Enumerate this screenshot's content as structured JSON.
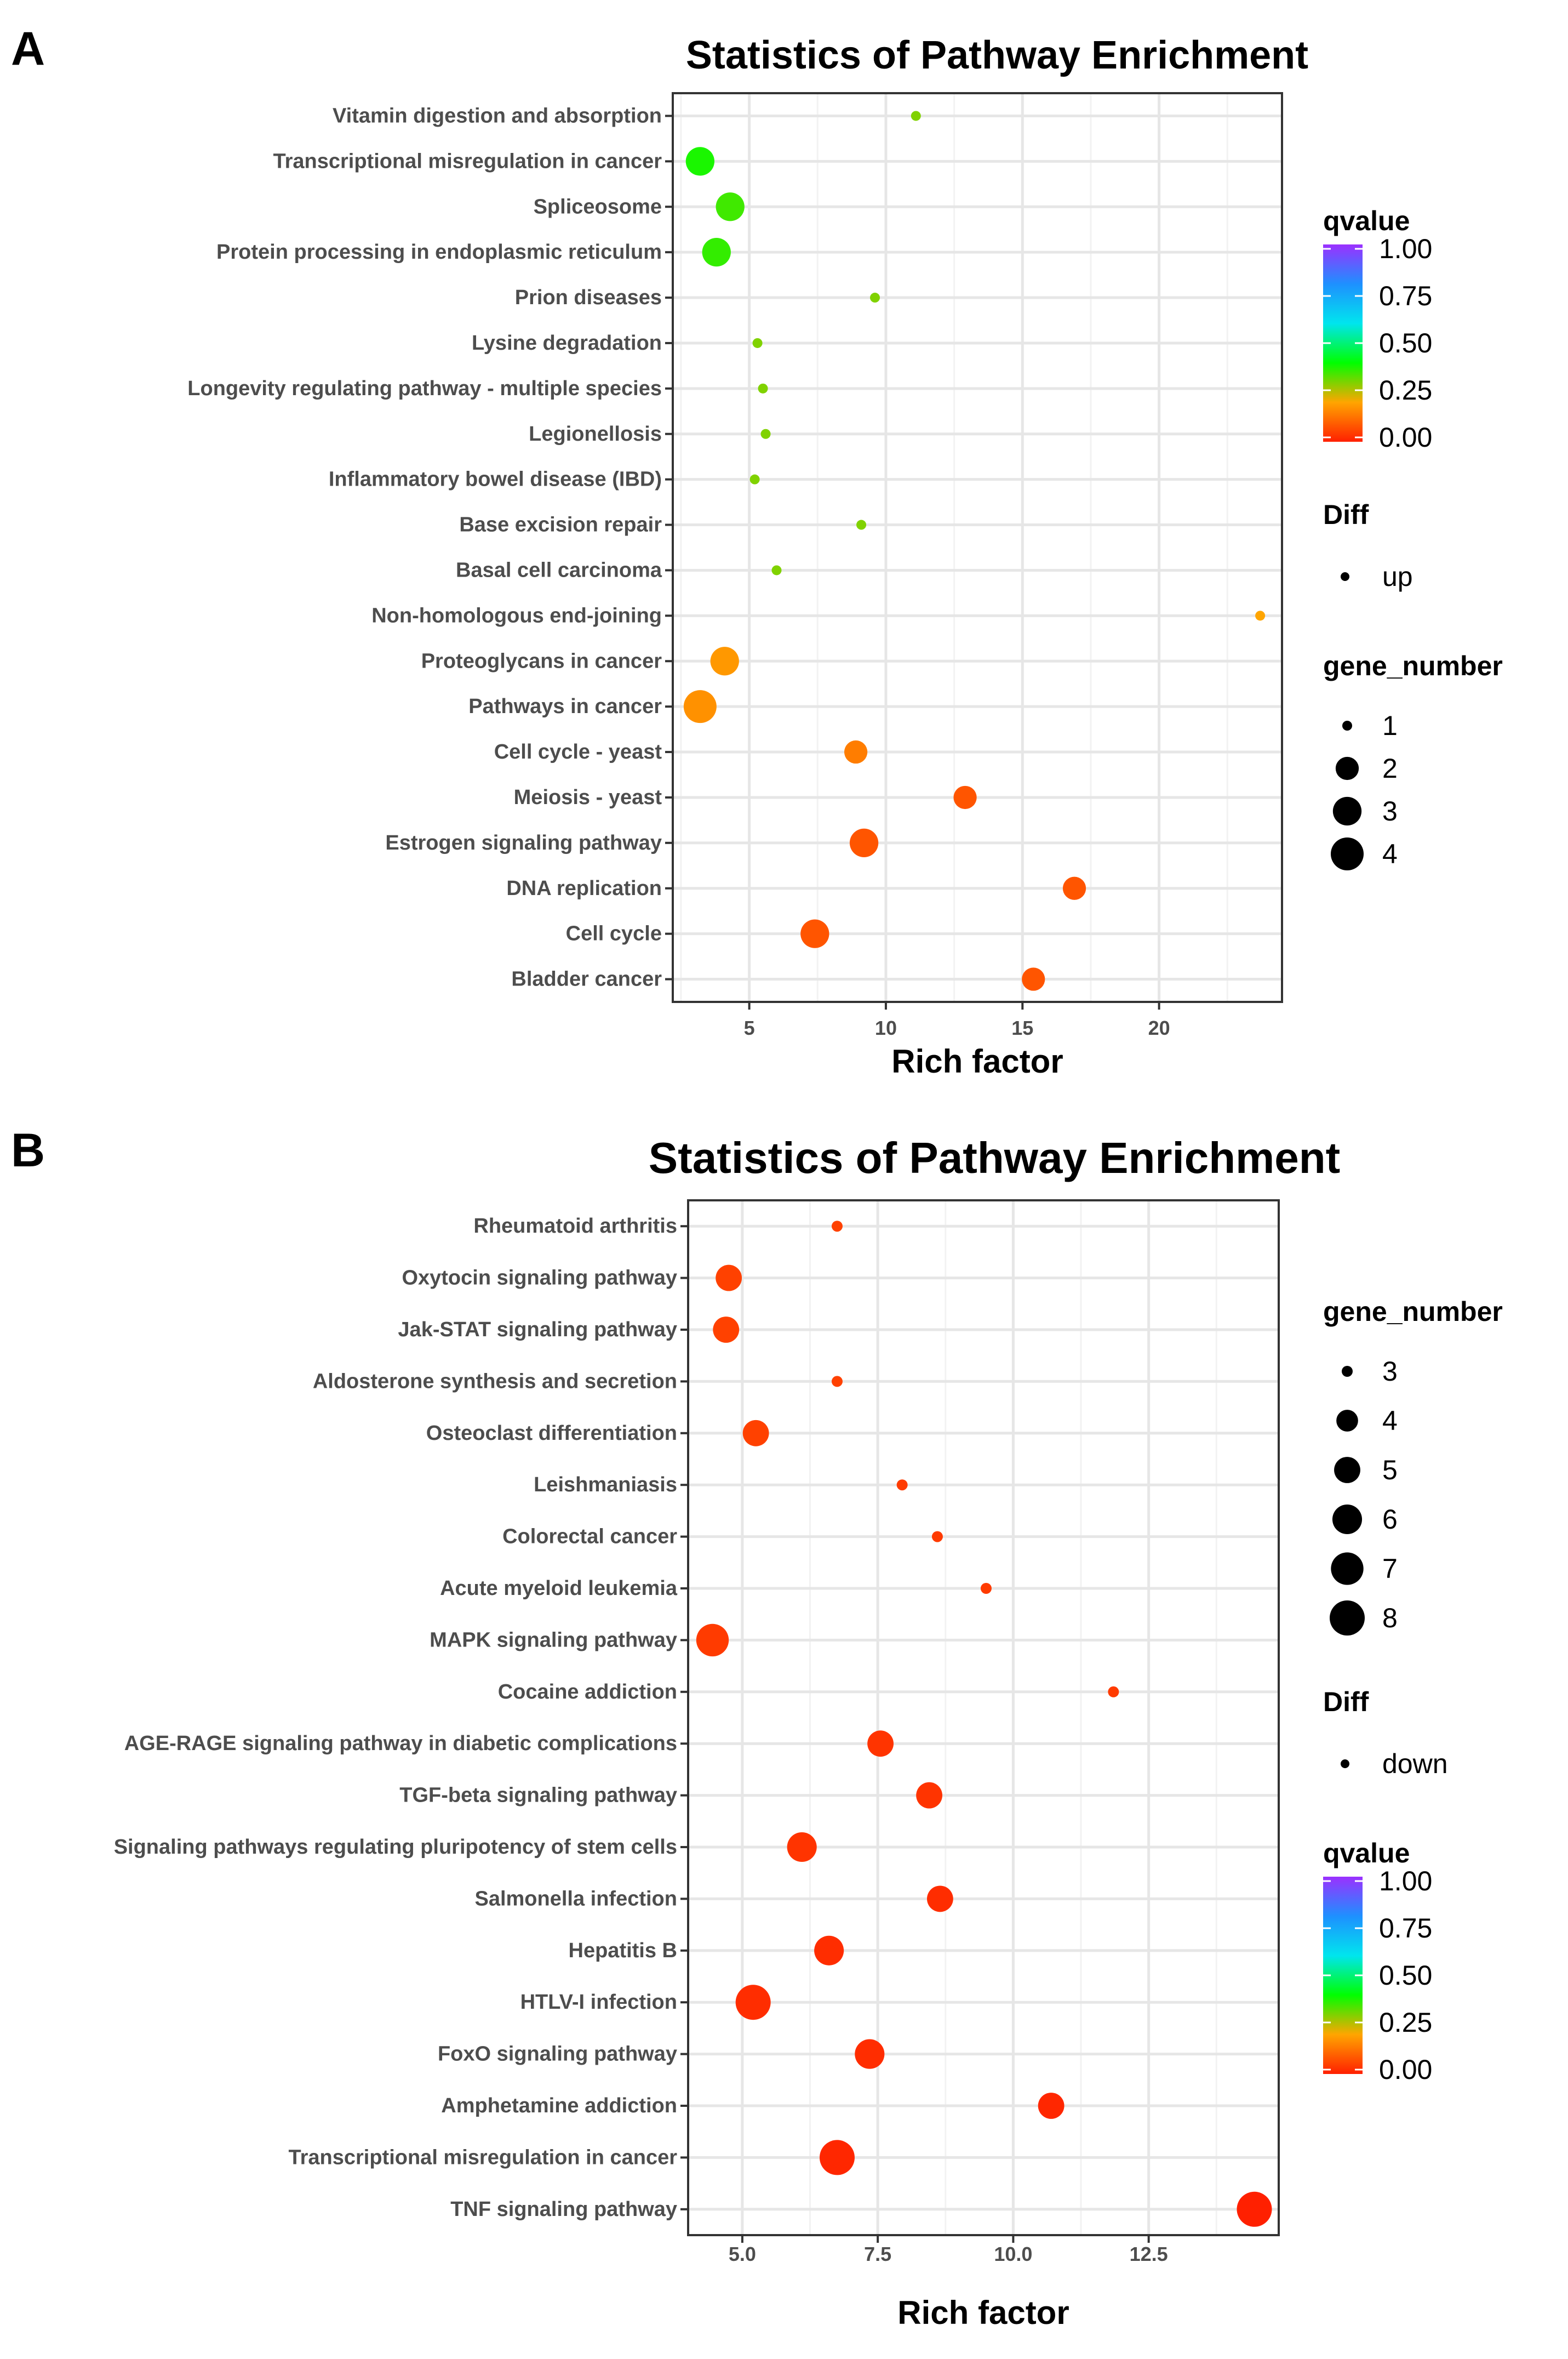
{
  "figure": {
    "panel_a_letter": "A",
    "panel_b_letter": "B"
  },
  "chart_data": [
    {
      "type": "scatter",
      "title": "Statistics of Pathway Enrichment",
      "xlabel": "Rich factor",
      "xlim": [
        2.2,
        24.5
      ],
      "xticks": [
        5,
        10,
        15,
        20
      ],
      "xtick_labels": [
        "5",
        "10",
        "15",
        "20"
      ],
      "categories": [
        "Vitamin digestion and absorption",
        "Transcriptional misregulation in cancer",
        "Spliceosome",
        "Protein processing in endoplasmic reticulum",
        "Prion diseases",
        "Lysine degradation",
        "Longevity regulating pathway - multiple species",
        "Legionellosis",
        "Inflammatory bowel disease (IBD)",
        "Base excision repair",
        "Basal cell carcinoma",
        "Non-homologous end-joining",
        "Proteoglycans in cancer",
        "Pathways in cancer",
        "Cell cycle - yeast",
        "Meiosis - yeast",
        "Estrogen signaling pathway",
        "DNA replication",
        "Cell cycle",
        "Bladder cancer"
      ],
      "points": [
        {
          "pathway": "Vitamin digestion and absorption",
          "rich_factor": 11.1,
          "gene_number": 1,
          "qvalue": 0.3
        },
        {
          "pathway": "Transcriptional misregulation in cancer",
          "rich_factor": 3.2,
          "gene_number": 3,
          "qvalue": 0.38
        },
        {
          "pathway": "Spliceosome",
          "rich_factor": 4.3,
          "gene_number": 3,
          "qvalue": 0.35
        },
        {
          "pathway": "Protein processing in endoplasmic reticulum",
          "rich_factor": 3.8,
          "gene_number": 3,
          "qvalue": 0.36
        },
        {
          "pathway": "Prion diseases",
          "rich_factor": 9.6,
          "gene_number": 1,
          "qvalue": 0.3
        },
        {
          "pathway": "Lysine degradation",
          "rich_factor": 5.3,
          "gene_number": 1,
          "qvalue": 0.3
        },
        {
          "pathway": "Longevity regulating pathway - multiple species",
          "rich_factor": 5.5,
          "gene_number": 1,
          "qvalue": 0.3
        },
        {
          "pathway": "Legionellosis",
          "rich_factor": 5.6,
          "gene_number": 1,
          "qvalue": 0.3
        },
        {
          "pathway": "Inflammatory bowel disease (IBD)",
          "rich_factor": 5.2,
          "gene_number": 1,
          "qvalue": 0.3
        },
        {
          "pathway": "Base excision repair",
          "rich_factor": 9.1,
          "gene_number": 1,
          "qvalue": 0.3
        },
        {
          "pathway": "Basal cell carcinoma",
          "rich_factor": 6.0,
          "gene_number": 1,
          "qvalue": 0.3
        },
        {
          "pathway": "Non-homologous end-joining",
          "rich_factor": 23.7,
          "gene_number": 1,
          "qvalue": 0.2
        },
        {
          "pathway": "Proteoglycans in cancer",
          "rich_factor": 4.1,
          "gene_number": 3,
          "qvalue": 0.18
        },
        {
          "pathway": "Pathways in cancer",
          "rich_factor": 3.2,
          "gene_number": 4,
          "qvalue": 0.17
        },
        {
          "pathway": "Cell cycle - yeast",
          "rich_factor": 8.9,
          "gene_number": 2,
          "qvalue": 0.14
        },
        {
          "pathway": "Meiosis - yeast",
          "rich_factor": 12.9,
          "gene_number": 2,
          "qvalue": 0.08
        },
        {
          "pathway": "Estrogen signaling pathway",
          "rich_factor": 9.2,
          "gene_number": 3,
          "qvalue": 0.08
        },
        {
          "pathway": "DNA replication",
          "rich_factor": 16.9,
          "gene_number": 2,
          "qvalue": 0.08
        },
        {
          "pathway": "Cell cycle",
          "rich_factor": 7.4,
          "gene_number": 3,
          "qvalue": 0.08
        },
        {
          "pathway": "Bladder cancer",
          "rich_factor": 15.4,
          "gene_number": 2,
          "qvalue": 0.08
        }
      ],
      "legend_qvalue": {
        "title": "qvalue",
        "labels": [
          "1.00",
          "0.75",
          "0.50",
          "0.25",
          "0.00"
        ],
        "colors": [
          "#9b30ff",
          "#1e90ff",
          "#00e5ee",
          "#00ff00",
          "#ffa500",
          "#ff2000"
        ]
      },
      "legend_diff": {
        "title": "Diff",
        "labels": [
          "up"
        ]
      },
      "legend_size": {
        "title": "gene_number",
        "labels": [
          "1",
          "2",
          "3",
          "4"
        ],
        "values": [
          1,
          2,
          3,
          4
        ]
      },
      "gene_number_range": [
        1,
        4
      ],
      "legend_order": [
        "qvalue",
        "diff",
        "size"
      ]
    },
    {
      "type": "scatter",
      "title": "Statistics of Pathway Enrichment",
      "xlabel": "Rich factor",
      "xlim": [
        4.0,
        14.9
      ],
      "xticks": [
        5.0,
        7.5,
        10.0,
        12.5
      ],
      "xtick_labels": [
        "5.0",
        "7.5",
        "10.0",
        "12.5"
      ],
      "categories": [
        "Rheumatoid arthritis",
        "Oxytocin signaling pathway",
        "Jak-STAT signaling pathway",
        "Aldosterone synthesis and secretion",
        "Osteoclast differentiation",
        "Leishmaniasis",
        "Colorectal cancer",
        "Acute myeloid leukemia",
        "MAPK signaling pathway",
        "Cocaine addiction",
        "AGE-RAGE signaling pathway in diabetic complications",
        "TGF-beta signaling pathway",
        "Signaling pathways regulating pluripotency of stem cells",
        "Salmonella infection",
        "Hepatitis B",
        "HTLV-I infection",
        "FoxO signaling pathway",
        "Amphetamine addiction",
        "Transcriptional misregulation in cancer",
        "TNF signaling pathway"
      ],
      "points": [
        {
          "pathway": "Rheumatoid arthritis",
          "rich_factor": 6.75,
          "gene_number": 3,
          "qvalue": 0.05
        },
        {
          "pathway": "Oxytocin signaling pathway",
          "rich_factor": 4.75,
          "gene_number": 5,
          "qvalue": 0.05
        },
        {
          "pathway": "Jak-STAT signaling pathway",
          "rich_factor": 4.7,
          "gene_number": 5,
          "qvalue": 0.05
        },
        {
          "pathway": "Aldosterone synthesis and secretion",
          "rich_factor": 6.75,
          "gene_number": 3,
          "qvalue": 0.05
        },
        {
          "pathway": "Osteoclast differentiation",
          "rich_factor": 5.25,
          "gene_number": 5,
          "qvalue": 0.05
        },
        {
          "pathway": "Leishmaniasis",
          "rich_factor": 7.95,
          "gene_number": 3,
          "qvalue": 0.04
        },
        {
          "pathway": "Colorectal cancer",
          "rich_factor": 8.6,
          "gene_number": 3,
          "qvalue": 0.04
        },
        {
          "pathway": "Acute myeloid leukemia",
          "rich_factor": 9.5,
          "gene_number": 3,
          "qvalue": 0.04
        },
        {
          "pathway": "MAPK signaling pathway",
          "rich_factor": 4.45,
          "gene_number": 7,
          "qvalue": 0.04
        },
        {
          "pathway": "Cocaine addiction",
          "rich_factor": 11.85,
          "gene_number": 3,
          "qvalue": 0.04
        },
        {
          "pathway": "AGE-RAGE signaling pathway in diabetic complications",
          "rich_factor": 7.55,
          "gene_number": 5,
          "qvalue": 0.03
        },
        {
          "pathway": "TGF-beta signaling pathway",
          "rich_factor": 8.45,
          "gene_number": 5,
          "qvalue": 0.03
        },
        {
          "pathway": "Signaling pathways regulating pluripotency of stem cells",
          "rich_factor": 6.1,
          "gene_number": 6,
          "qvalue": 0.03
        },
        {
          "pathway": "Salmonella infection",
          "rich_factor": 8.65,
          "gene_number": 5,
          "qvalue": 0.02
        },
        {
          "pathway": "Hepatitis B",
          "rich_factor": 6.6,
          "gene_number": 6,
          "qvalue": 0.02
        },
        {
          "pathway": "HTLV-I infection",
          "rich_factor": 5.2,
          "gene_number": 8,
          "qvalue": 0.02
        },
        {
          "pathway": "FoxO signaling pathway",
          "rich_factor": 7.35,
          "gene_number": 6,
          "qvalue": 0.02
        },
        {
          "pathway": "Amphetamine addiction",
          "rich_factor": 10.7,
          "gene_number": 5,
          "qvalue": 0.01
        },
        {
          "pathway": "Transcriptional misregulation in cancer",
          "rich_factor": 6.75,
          "gene_number": 8,
          "qvalue": 0.01
        },
        {
          "pathway": "TNF signaling pathway",
          "rich_factor": 14.45,
          "gene_number": 8,
          "qvalue": 0.0
        }
      ],
      "legend_size": {
        "title": "gene_number",
        "labels": [
          "3",
          "4",
          "5",
          "6",
          "7",
          "8"
        ],
        "values": [
          3,
          4,
          5,
          6,
          7,
          8
        ]
      },
      "legend_diff": {
        "title": "Diff",
        "labels": [
          "down"
        ]
      },
      "legend_qvalue": {
        "title": "qvalue",
        "labels": [
          "1.00",
          "0.75",
          "0.50",
          "0.25",
          "0.00"
        ],
        "colors": [
          "#9b30ff",
          "#1e90ff",
          "#00e5ee",
          "#00ff00",
          "#ffa500",
          "#ff2000"
        ]
      },
      "gene_number_range": [
        3,
        8
      ],
      "legend_order": [
        "size",
        "diff",
        "qvalue"
      ]
    }
  ]
}
